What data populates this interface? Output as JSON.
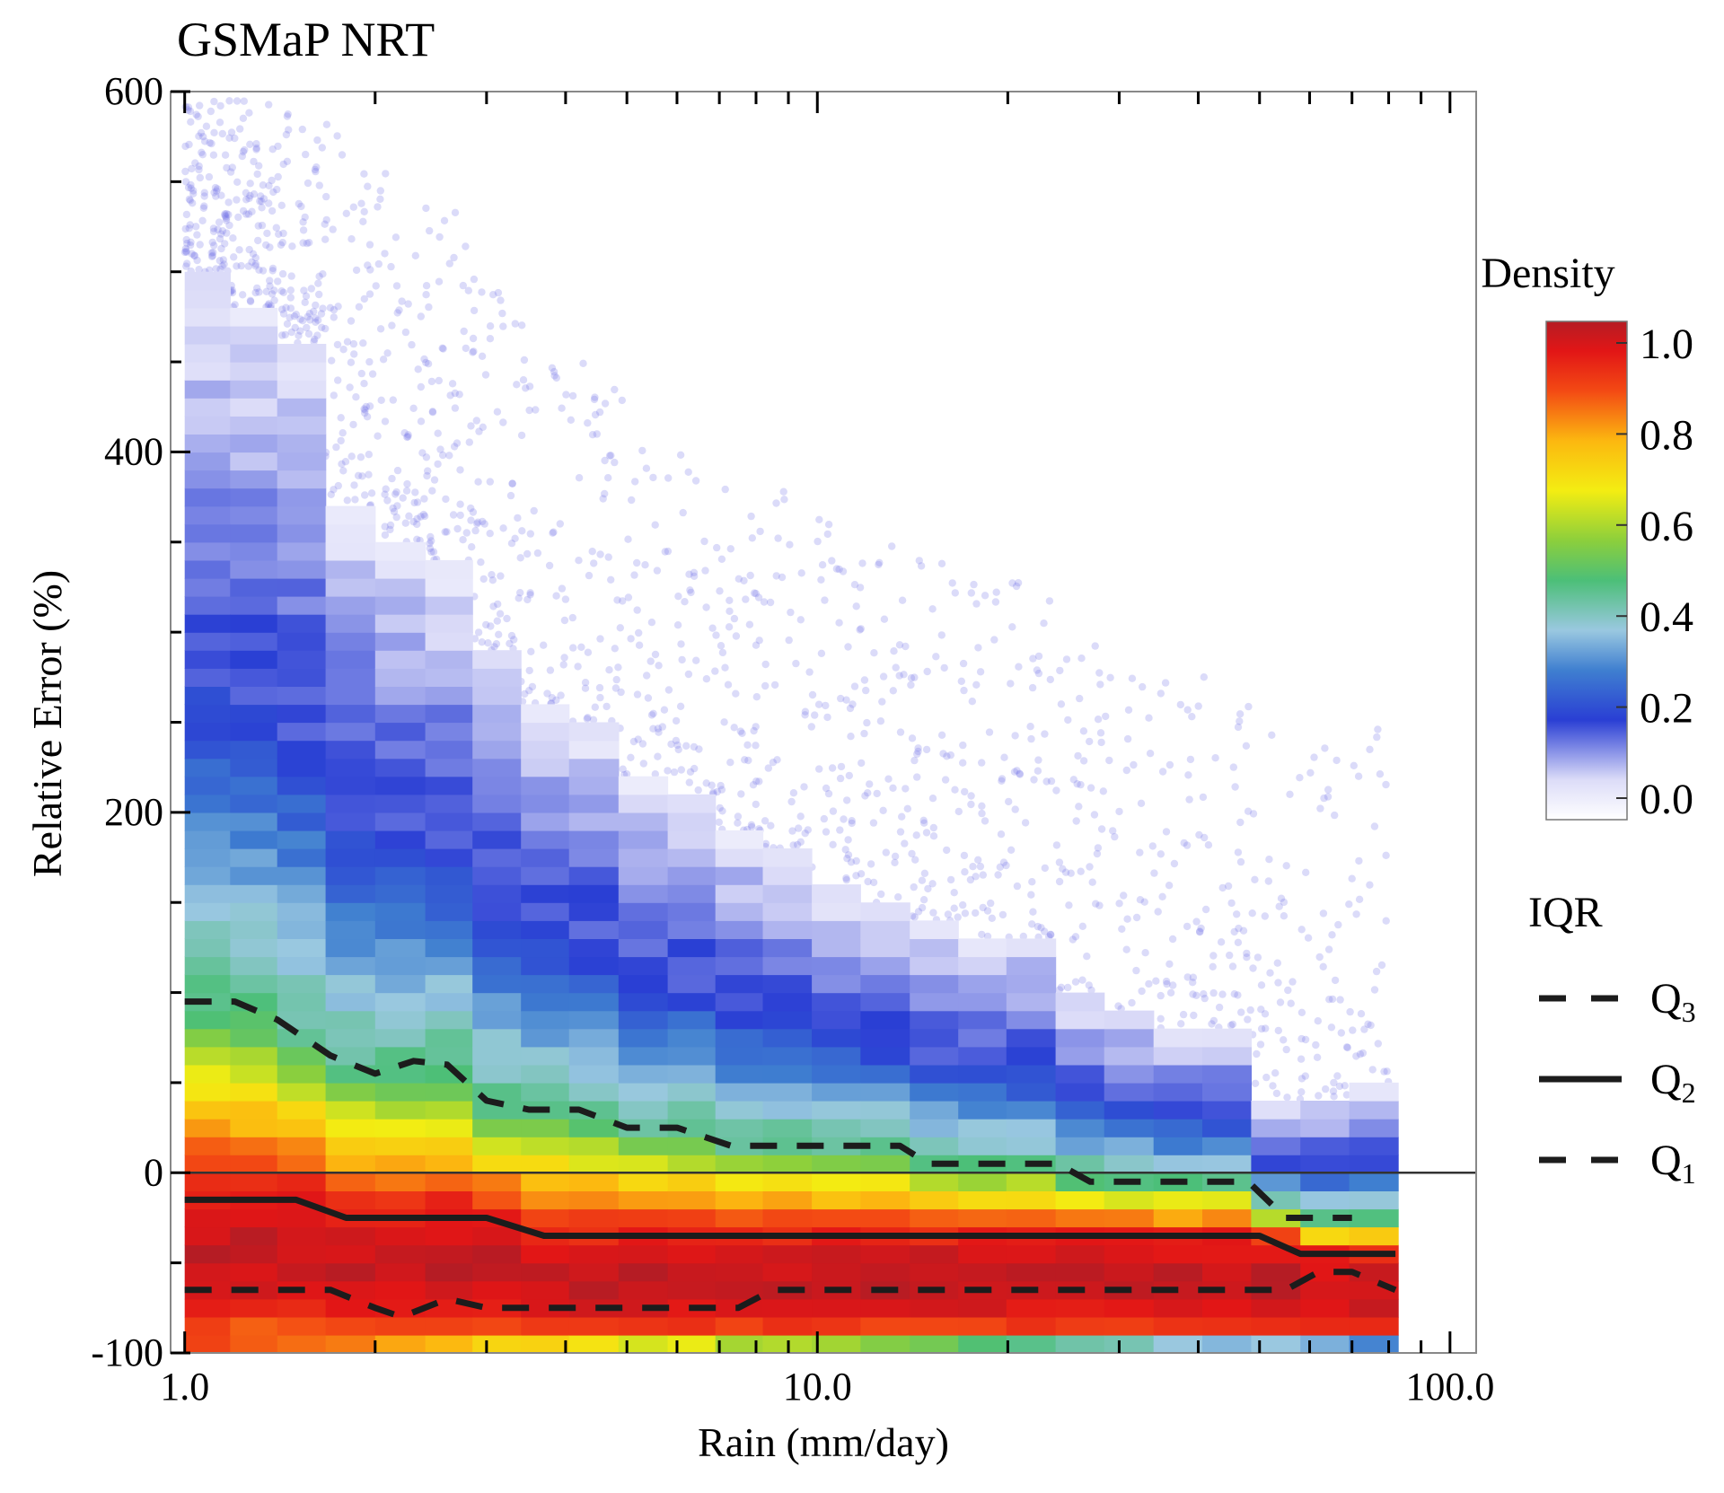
{
  "chart_data": {
    "type": "heatmap",
    "title": "GSMaP NRT",
    "xlabel": "Rain (mm/day)",
    "ylabel": "Relative Error (%)",
    "xscale": "log",
    "xlim": [
      0.95,
      110
    ],
    "ylim": [
      -100,
      600
    ],
    "xticks": [
      1,
      10,
      100
    ],
    "xtick_labels": [
      "1.0",
      "10.0",
      "100.0"
    ],
    "yticks": [
      -100,
      0,
      200,
      400,
      600
    ],
    "ytick_labels": [
      "-100",
      "0",
      "200",
      "400",
      "600"
    ],
    "reference_line_y": 0,
    "colorbar": {
      "label": "Density",
      "range": [
        0,
        1
      ],
      "ticks": [
        0.0,
        0.2,
        0.4,
        0.6,
        0.8,
        1.0
      ],
      "tick_labels": [
        "0.0",
        "0.2",
        "0.4",
        "0.6",
        "0.8",
        "1.0"
      ],
      "stops": [
        [
          0.0,
          "#ffffff"
        ],
        [
          0.08,
          "#dcdcf8"
        ],
        [
          0.2,
          "#2a3fd4"
        ],
        [
          0.3,
          "#3f7fd0"
        ],
        [
          0.38,
          "#9ac8e0"
        ],
        [
          0.48,
          "#4cbf78"
        ],
        [
          0.56,
          "#8ccf3c"
        ],
        [
          0.66,
          "#f3ed12"
        ],
        [
          0.76,
          "#fcb810"
        ],
        [
          0.86,
          "#f34a14"
        ],
        [
          0.94,
          "#e21616"
        ],
        [
          1.0,
          "#b51c24"
        ]
      ]
    },
    "columns": [
      {
        "x0": 1.0,
        "x1": 1.18,
        "ytop": 500
      },
      {
        "x0": 1.18,
        "x1": 1.4,
        "ytop": 480
      },
      {
        "x0": 1.4,
        "x1": 1.67,
        "ytop": 460
      },
      {
        "x0": 1.67,
        "x1": 2.0,
        "ytop": 370
      },
      {
        "x0": 2.0,
        "x1": 2.4,
        "ytop": 350
      },
      {
        "x0": 2.4,
        "x1": 2.85,
        "ytop": 340
      },
      {
        "x0": 2.85,
        "x1": 3.4,
        "ytop": 290
      },
      {
        "x0": 3.4,
        "x1": 4.05,
        "ytop": 260
      },
      {
        "x0": 4.05,
        "x1": 4.85,
        "ytop": 250
      },
      {
        "x0": 4.85,
        "x1": 5.8,
        "ytop": 220
      },
      {
        "x0": 5.8,
        "x1": 6.9,
        "ytop": 210
      },
      {
        "x0": 6.9,
        "x1": 8.2,
        "ytop": 190
      },
      {
        "x0": 8.2,
        "x1": 9.8,
        "ytop": 180
      },
      {
        "x0": 9.8,
        "x1": 11.7,
        "ytop": 160
      },
      {
        "x0": 11.7,
        "x1": 14.0,
        "ytop": 150
      },
      {
        "x0": 14.0,
        "x1": 16.7,
        "ytop": 140
      },
      {
        "x0": 16.7,
        "x1": 19.9,
        "ytop": 130
      },
      {
        "x0": 19.9,
        "x1": 23.8,
        "ytop": 130
      },
      {
        "x0": 23.8,
        "x1": 28.4,
        "ytop": 100
      },
      {
        "x0": 28.4,
        "x1": 34.0,
        "ytop": 90
      },
      {
        "x0": 34.0,
        "x1": 40.6,
        "ytop": 80
      },
      {
        "x0": 40.6,
        "x1": 48.5,
        "ytop": 80
      },
      {
        "x0": 48.5,
        "x1": 58.0,
        "ytop": 40
      },
      {
        "x0": 58.0,
        "x1": 69.3,
        "ytop": 40
      },
      {
        "x0": 69.3,
        "x1": 82.8,
        "ytop": 50
      }
    ],
    "scatter_points": {
      "note": "diffuse light-blue outliers above the density columns",
      "color": "#6f6fe6",
      "approx_count": 1400
    },
    "series": [
      {
        "name": "Q3",
        "style": "dashed",
        "x": [
          1.0,
          1.2,
          1.4,
          1.7,
          2.0,
          2.3,
          2.6,
          3.0,
          3.5,
          4.2,
          5.0,
          6.0,
          7.3,
          9.0,
          11.0,
          13.5,
          15.0,
          17.0,
          21.0,
          24.0,
          27.0,
          33.0,
          40.0,
          48.0,
          55.0,
          60.0,
          70.0
        ],
        "y": [
          95,
          95,
          85,
          65,
          55,
          62,
          60,
          40,
          35,
          35,
          25,
          25,
          15,
          15,
          15,
          15,
          5,
          5,
          5,
          5,
          -5,
          -5,
          -5,
          -5,
          -25,
          -25,
          -25
        ]
      },
      {
        "name": "Q2",
        "style": "solid",
        "x": [
          1.0,
          1.5,
          1.8,
          2.2,
          3.0,
          3.7,
          5.0,
          8.0,
          12.0,
          20.0,
          30.0,
          40.0,
          50.0,
          58.0,
          70.0,
          82.0
        ],
        "y": [
          -15,
          -15,
          -25,
          -25,
          -25,
          -35,
          -35,
          -35,
          -35,
          -35,
          -35,
          -35,
          -35,
          -45,
          -45,
          -45
        ]
      },
      {
        "name": "Q1",
        "style": "dashed",
        "x": [
          1.0,
          1.4,
          1.7,
          2.0,
          2.2,
          2.6,
          3.0,
          3.5,
          5.0,
          7.5,
          8.5,
          9.5,
          15.0,
          30.0,
          45.0,
          55.0,
          62.0,
          70.0,
          82.0
        ],
        "y": [
          -65,
          -65,
          -65,
          -75,
          -80,
          -70,
          -75,
          -75,
          -75,
          -75,
          -65,
          -65,
          -65,
          -65,
          -65,
          -65,
          -55,
          -55,
          -65
        ]
      }
    ],
    "legend": {
      "title": "IQR",
      "entries": [
        {
          "label": "Q",
          "sub": "3",
          "style": "dashed"
        },
        {
          "label": "Q",
          "sub": "2",
          "style": "solid"
        },
        {
          "label": "Q",
          "sub": "1",
          "style": "dashed"
        }
      ],
      "placement": "right"
    }
  }
}
